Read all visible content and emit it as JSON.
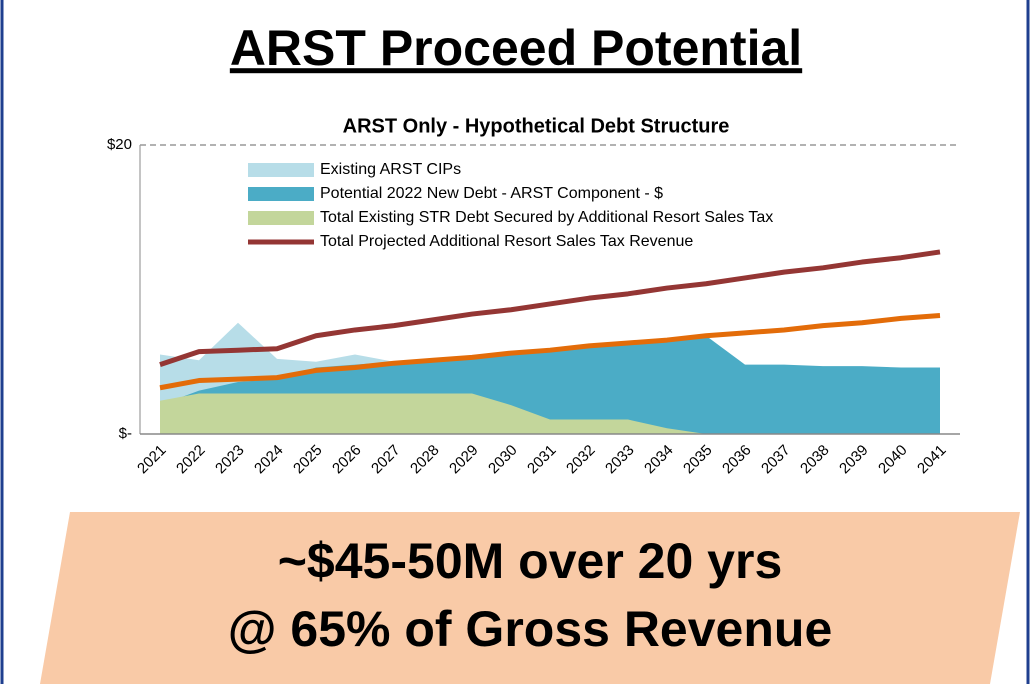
{
  "slide": {
    "title": "ARST Proceed Potential",
    "banner": [
      "~$45-50M over 20 yrs",
      "@ 65% of Gross Revenue"
    ]
  },
  "chart_data": {
    "type": "area",
    "title": "ARST Only - Hypothetical Debt Structure",
    "categories": [
      "2021",
      "2022",
      "2023",
      "2024",
      "2025",
      "2026",
      "2027",
      "2028",
      "2029",
      "2030",
      "2031",
      "2032",
      "2033",
      "2034",
      "2035",
      "2036",
      "2037",
      "2038",
      "2039",
      "2040",
      "2041"
    ],
    "ylim": [
      0,
      20
    ],
    "yticks": [
      {
        "value": 0,
        "label": "$-"
      },
      {
        "value": 20,
        "label": "$20"
      }
    ],
    "grid": true,
    "legend": "top-left",
    "series": [
      {
        "name": "Existing ARST CIPs",
        "kind": "area",
        "color": "#b7dde8",
        "values": [
          5.5,
          5.1,
          7.7,
          5.2,
          5.0,
          5.5,
          5.0,
          4.5,
          3.5,
          0,
          0,
          0,
          0,
          0,
          0,
          0,
          0,
          0,
          0,
          0,
          0
        ]
      },
      {
        "name": "Potential 2022 New Debt - ARST Component - $",
        "kind": "area",
        "color": "#4bacc6",
        "values": [
          2.0,
          3.0,
          3.6,
          3.8,
          4.6,
          4.8,
          5.0,
          5.2,
          5.4,
          5.6,
          5.8,
          6.0,
          6.2,
          6.5,
          6.8,
          4.8,
          4.8,
          4.7,
          4.7,
          4.6,
          4.6
        ]
      },
      {
        "name": "Total Existing STR Debt Secured by Additional Resort Sales Tax",
        "kind": "area",
        "color": "#c3d69b",
        "values": [
          2.3,
          2.8,
          2.8,
          2.8,
          2.8,
          2.8,
          2.8,
          2.8,
          2.8,
          2.0,
          1.0,
          1.0,
          1.0,
          0.4,
          0,
          0,
          0,
          0,
          0,
          0,
          0
        ]
      },
      {
        "name": "Total Projected Additional Resort Sales Tax Revenue",
        "kind": "line",
        "color": "#943634",
        "values": [
          4.8,
          5.7,
          5.8,
          5.9,
          6.8,
          7.2,
          7.5,
          7.9,
          8.3,
          8.6,
          9.0,
          9.4,
          9.7,
          10.1,
          10.4,
          10.8,
          11.2,
          11.5,
          11.9,
          12.2,
          12.6
        ]
      },
      {
        "kind": "line",
        "color": "#e36c09",
        "values": [
          3.2,
          3.7,
          3.8,
          3.9,
          4.4,
          4.6,
          4.9,
          5.1,
          5.3,
          5.6,
          5.8,
          6.1,
          6.3,
          6.5,
          6.8,
          7.0,
          7.2,
          7.5,
          7.7,
          8.0,
          8.2
        ]
      }
    ]
  }
}
